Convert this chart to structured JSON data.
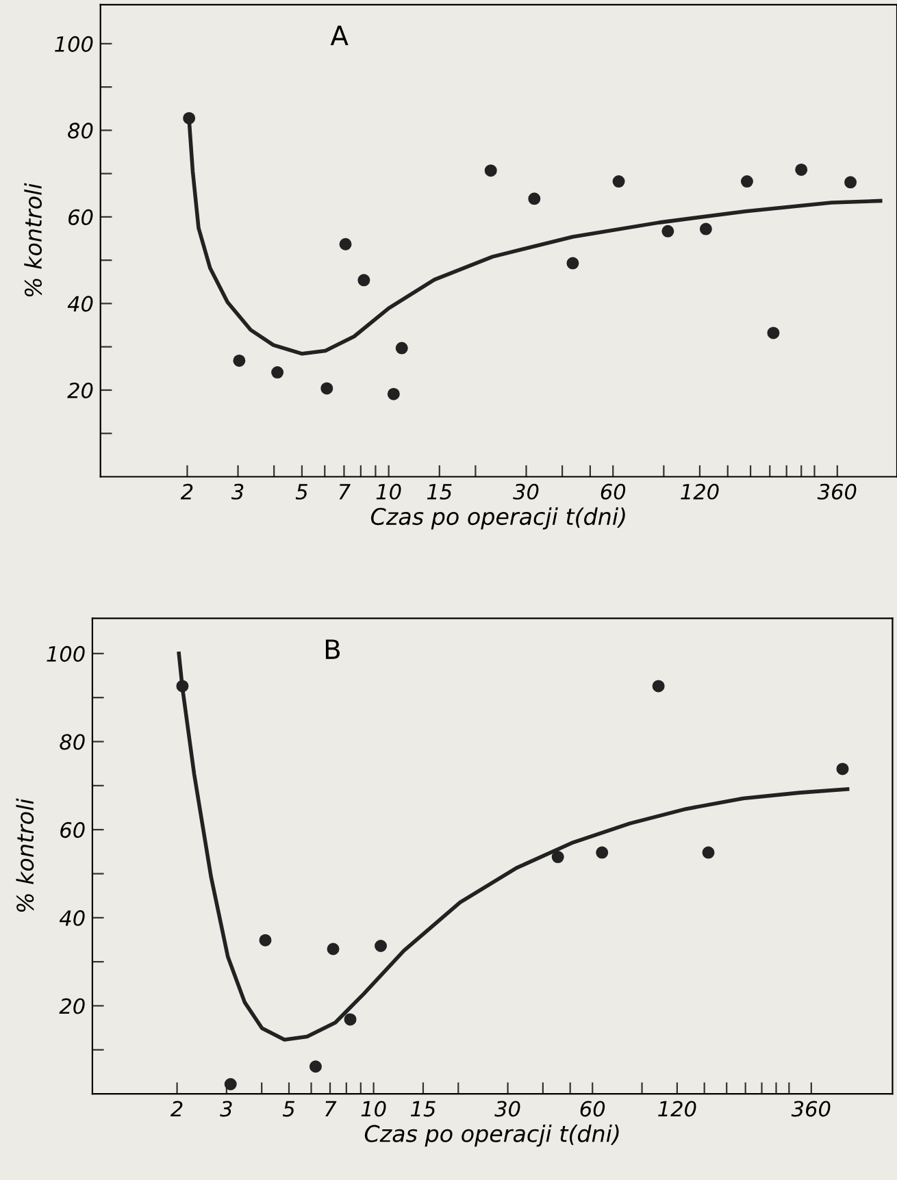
{
  "chart_data": [
    {
      "type": "scatter",
      "title": "A",
      "xlabel": "Czas po operacji t(dni)",
      "ylabel": "% kontroli",
      "log": "x",
      "xlim": [
        1,
        580
      ],
      "ylim": [
        0,
        109
      ],
      "xticks": [
        2,
        3,
        {
          "value": 4,
          "label": null
        },
        5,
        {
          "value": 6,
          "label": null
        },
        7,
        {
          "value": 8,
          "label": null
        },
        {
          "value": 9,
          "label": null
        },
        10,
        15,
        {
          "value": 20,
          "label": null
        },
        30,
        {
          "value": 40,
          "label": null
        },
        {
          "value": 50,
          "label": null
        },
        60,
        {
          "value": 90,
          "label": null
        },
        120,
        {
          "value": 150,
          "label": null
        },
        {
          "value": 180,
          "label": null
        },
        {
          "value": 210,
          "label": null
        },
        {
          "value": 240,
          "label": null
        },
        {
          "value": 270,
          "label": null
        },
        {
          "value": 300,
          "label": null
        },
        360
      ],
      "yticks": [
        {
          "value": 10,
          "label": null
        },
        20,
        {
          "value": 30,
          "label": null
        },
        40,
        {
          "value": 50,
          "label": null
        },
        60,
        {
          "value": 70,
          "label": null
        },
        80,
        {
          "value": 90,
          "label": null
        },
        100
      ],
      "grid": false,
      "legend": false,
      "series": [
        {
          "color": "#222222",
          "marker": "circle",
          "x": [
            2.03,
            3.03,
            4.11,
            6.1,
            7.08,
            8.2,
            10.4,
            11.1,
            22.6,
            32,
            43.5,
            62.8,
            93,
            126,
            175,
            216,
            270,
            400
          ],
          "values": [
            82.8,
            26.8,
            24.1,
            20.4,
            53.7,
            45.4,
            19.1,
            29.7,
            70.7,
            64.2,
            49.3,
            68.2,
            56.7,
            57.2,
            68.2,
            33.2,
            70.9,
            68.0
          ]
        },
        {
          "type": "line",
          "color": "#222222",
          "line_style": "solid",
          "x": [
            2.03,
            2.09,
            2.19,
            2.4,
            2.76,
            3.32,
            3.98,
            5.01,
            6.03,
            7.59,
            10.0,
            14.4,
            22.9,
            43.5,
            86.7,
            173,
            344,
            508
          ],
          "values": [
            82.4,
            70.5,
            57.4,
            48.2,
            40.3,
            33.9,
            30.4,
            28.4,
            29.1,
            32.4,
            38.9,
            45.5,
            50.8,
            55.4,
            58.7,
            61.3,
            63.3,
            63.7
          ]
        }
      ]
    },
    {
      "type": "scatter",
      "title": "B",
      "xlabel": "Czas po operacji t(dni)",
      "ylabel": "% kontroli",
      "log": "x",
      "xlim": [
        1,
        700
      ],
      "ylim": [
        0,
        108
      ],
      "xticks": [
        2,
        3,
        {
          "value": 4,
          "label": null
        },
        5,
        {
          "value": 6,
          "label": null
        },
        7,
        {
          "value": 8,
          "label": null
        },
        {
          "value": 9,
          "label": null
        },
        10,
        15,
        {
          "value": 20,
          "label": null
        },
        30,
        {
          "value": 40,
          "label": null
        },
        {
          "value": 50,
          "label": null
        },
        60,
        {
          "value": 90,
          "label": null
        },
        120,
        {
          "value": 150,
          "label": null
        },
        {
          "value": 180,
          "label": null
        },
        {
          "value": 210,
          "label": null
        },
        {
          "value": 240,
          "label": null
        },
        {
          "value": 270,
          "label": null
        },
        {
          "value": 300,
          "label": null
        },
        360
      ],
      "yticks": [
        {
          "value": 10,
          "label": null
        },
        20,
        {
          "value": 30,
          "label": null
        },
        40,
        {
          "value": 50,
          "label": null
        },
        60,
        {
          "value": 70,
          "label": null
        },
        80,
        {
          "value": 90,
          "label": null
        },
        100
      ],
      "grid": false,
      "legend": false,
      "series": [
        {
          "color": "#222222",
          "marker": "circle",
          "x": [
            2.09,
            3.1,
            4.12,
            6.22,
            7.18,
            8.26,
            10.6,
            45.2,
            64.9,
            103,
            155,
            465
          ],
          "values": [
            92.6,
            2.2,
            34.9,
            6.2,
            32.9,
            16.9,
            33.6,
            53.8,
            54.8,
            92.6,
            54.8,
            73.8
          ]
        },
        {
          "type": "line",
          "color": "#222222",
          "line_style": "solid",
          "x": [
            2.03,
            2.09,
            2.3,
            2.64,
            3.03,
            3.48,
            4.01,
            4.82,
            5.8,
            7.31,
            9.22,
            12.8,
            20.3,
            32.2,
            51.2,
            81.4,
            129,
            206,
            327,
            484
          ],
          "values": [
            100,
            92.2,
            72.7,
            49.4,
            31.2,
            20.8,
            14.9,
            12.3,
            13.0,
            16.2,
            22.7,
            32.5,
            43.5,
            51.3,
            57.1,
            61.4,
            64.7,
            67.1,
            68.4,
            69.2
          ]
        }
      ]
    }
  ]
}
